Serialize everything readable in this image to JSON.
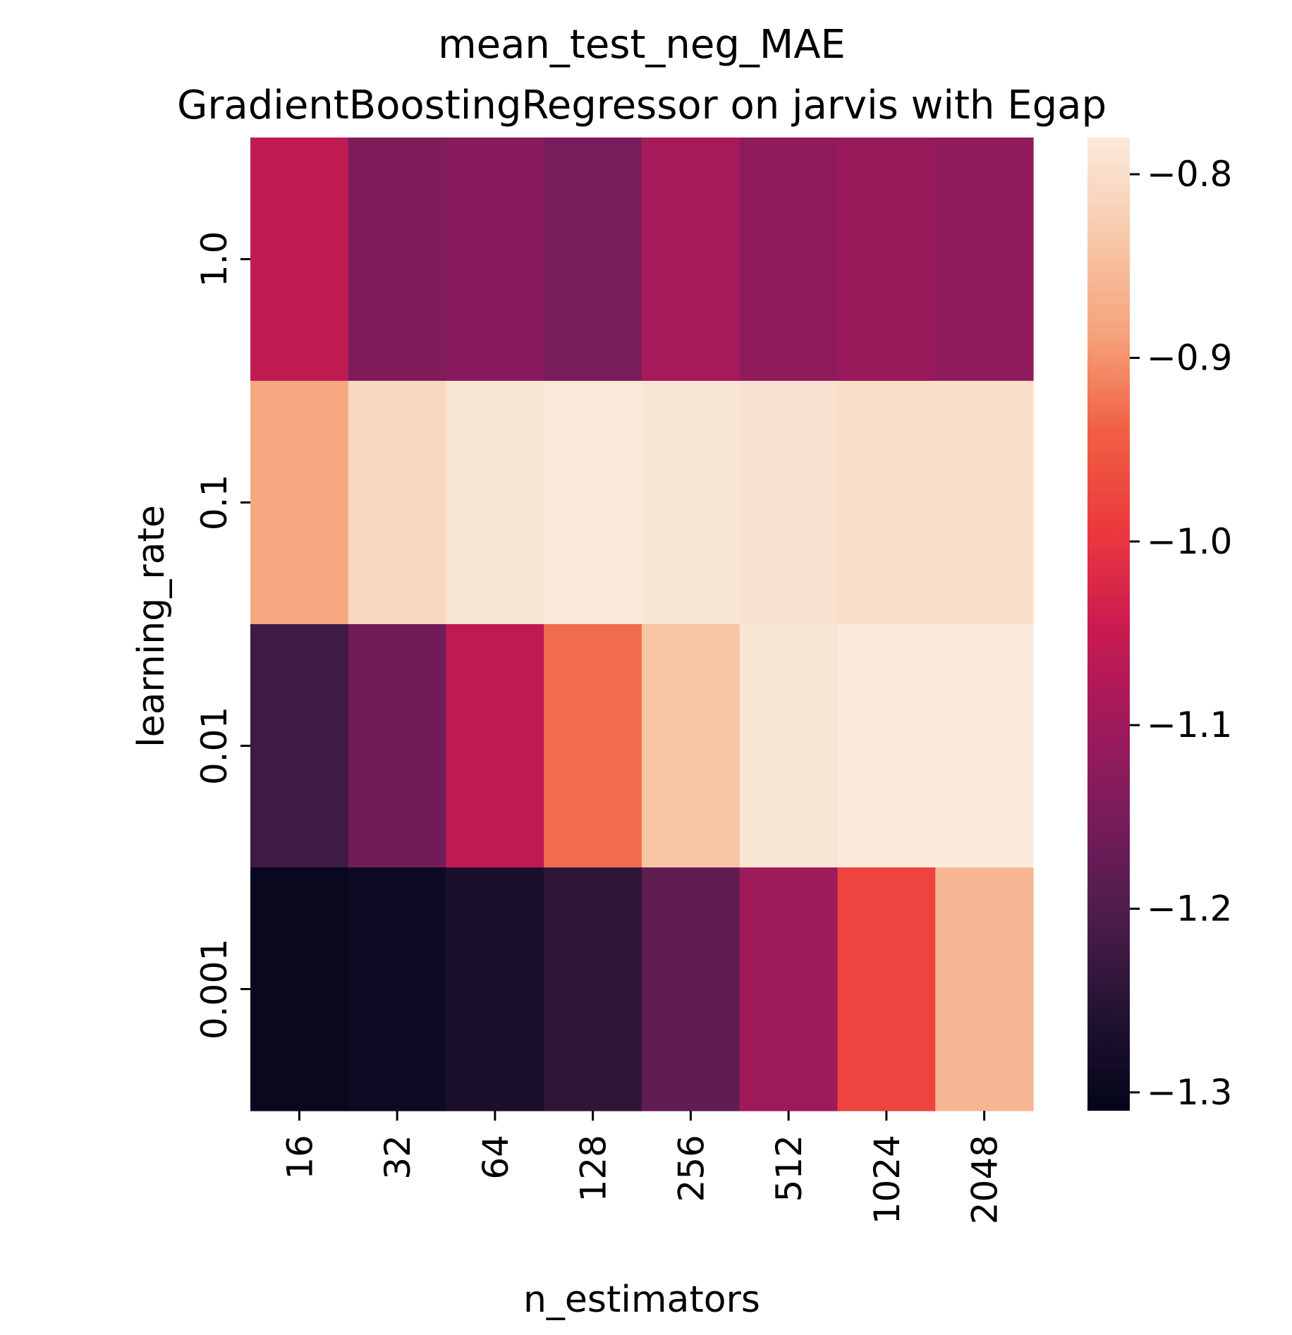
{
  "chart_data": {
    "type": "heatmap",
    "title": "mean_test_neg_MAE",
    "subtitle": "GradientBoostingRegressor on jarvis with Egap",
    "xlabel": "n_estimators",
    "ylabel": "learning_rate",
    "x_categories": [
      "16",
      "32",
      "64",
      "128",
      "256",
      "512",
      "1024",
      "2048"
    ],
    "y_categories": [
      "1.0",
      "0.1",
      "0.01",
      "0.001"
    ],
    "values": [
      [
        -1.06,
        -1.14,
        -1.13,
        -1.15,
        -1.09,
        -1.12,
        -1.11,
        -1.12
      ],
      [
        -0.88,
        -0.81,
        -0.79,
        -0.785,
        -0.79,
        -0.795,
        -0.8,
        -0.8
      ],
      [
        -1.22,
        -1.16,
        -1.06,
        -0.93,
        -0.84,
        -0.79,
        -0.78,
        -0.78
      ],
      [
        -1.3,
        -1.29,
        -1.27,
        -1.24,
        -1.18,
        -1.1,
        -0.98,
        -0.86
      ]
    ],
    "colorbar": {
      "vmin": -1.31,
      "vmax": -0.78,
      "ticks": [
        -0.8,
        -0.9,
        -1.0,
        -1.1,
        -1.2,
        -1.3
      ],
      "tick_labels": [
        "−0.8",
        "−0.9",
        "−1.0",
        "−1.1",
        "−1.2",
        "−1.3"
      ],
      "colormap": "rocket",
      "colormap_stops": [
        "#03051a",
        "#221331",
        "#4c1d4b",
        "#781c5b",
        "#a11a5b",
        "#cb1b4f",
        "#ed3a3d",
        "#f06043",
        "#f6a47c",
        "#f7c9aa",
        "#faebdd"
      ]
    },
    "grid": false,
    "legend": "right (colorbar)"
  }
}
